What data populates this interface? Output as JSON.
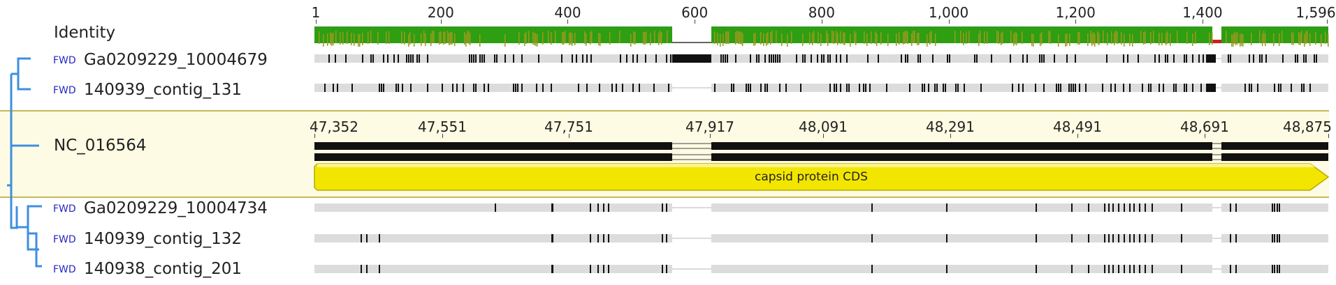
{
  "identity_label": "Identity",
  "identity_colors": {
    "high": "#2e9e12",
    "mid": "#9a9a1e",
    "low": "#cc2020"
  },
  "top_ruler": {
    "positions": [
      1,
      200,
      400,
      600,
      800,
      1000,
      1200,
      1400,
      1596
    ],
    "labels": [
      "1",
      "200",
      "400",
      "600",
      "800",
      "1,000",
      "1,200",
      "1,400",
      "1,596"
    ]
  },
  "reference": {
    "name": "NC_016564",
    "labels": [
      "47,352",
      "47,551",
      "47,751",
      "47,917",
      "48,091",
      "48,291",
      "48,491",
      "48,691",
      "48,875"
    ],
    "annotation": "capsid protein CDS",
    "annotation_color": "#f2e600"
  },
  "sequences_top": [
    {
      "direction": "FWD",
      "name": "Ga0209229_10004679"
    },
    {
      "direction": "FWD",
      "name": "140939_contig_131"
    }
  ],
  "sequences_bottom": [
    {
      "direction": "FWD",
      "name": "Ga0209229_10004734"
    },
    {
      "direction": "FWD",
      "name": "140939_contig_132"
    },
    {
      "direction": "FWD",
      "name": "140938_contig_201"
    }
  ],
  "tree_color": "#3d8fe0"
}
